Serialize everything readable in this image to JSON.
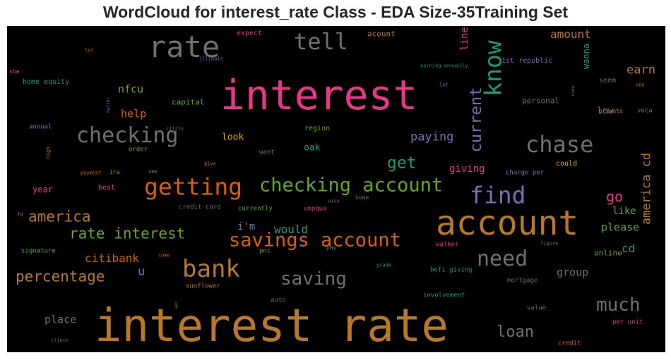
{
  "chart_data": {
    "type": "wordcloud",
    "title": "WordCloud for interest_rate Class - EDA Size-35Training Set",
    "background": "#000000",
    "colormap": "Dark2",
    "words": [
      {
        "text": "interest rate",
        "weight": 1.0,
        "color": "#b8782a"
      },
      {
        "text": "interest",
        "weight": 0.8,
        "color": "#e6378a"
      },
      {
        "text": "account",
        "weight": 0.66,
        "color": "#b8782a"
      },
      {
        "text": "rate",
        "weight": 0.47,
        "color": "#6f6f6f"
      },
      {
        "text": "tell",
        "weight": 0.36,
        "color": "#6f6f6f"
      },
      {
        "text": "know",
        "weight": 0.42,
        "color": "#1e9a78"
      },
      {
        "text": "checking",
        "weight": 0.34,
        "color": "#6f6f6f"
      },
      {
        "text": "current",
        "weight": 0.32,
        "color": "#7470b5"
      },
      {
        "text": "chase",
        "weight": 0.37,
        "color": "#6f6f6f"
      },
      {
        "text": "checking account",
        "weight": 0.33,
        "color": "#66a61e"
      },
      {
        "text": "getting",
        "weight": 0.41,
        "color": "#d95f02"
      },
      {
        "text": "find",
        "weight": 0.37,
        "color": "#7470b5"
      },
      {
        "text": "bank",
        "weight": 0.42,
        "color": "#b8782a"
      },
      {
        "text": "savings account",
        "weight": 0.34,
        "color": "#d95f02"
      },
      {
        "text": "need",
        "weight": 0.37,
        "color": "#6f6f6f"
      },
      {
        "text": "much",
        "weight": 0.33,
        "color": "#6f6f6f"
      },
      {
        "text": "saving",
        "weight": 0.31,
        "color": "#6f6f6f"
      },
      {
        "text": "america",
        "weight": 0.26,
        "color": "#b8782a"
      },
      {
        "text": "rate interest",
        "weight": 0.26,
        "color": "#66a61e"
      },
      {
        "text": "percentage",
        "weight": 0.26,
        "color": "#b8782a"
      },
      {
        "text": "get",
        "weight": 0.28,
        "color": "#1e9a78"
      },
      {
        "text": "paying",
        "weight": 0.22,
        "color": "#7470b5"
      },
      {
        "text": "loan",
        "weight": 0.25,
        "color": "#6f6f6f"
      },
      {
        "text": "america cd",
        "weight": 0.21,
        "color": "#b8782a"
      },
      {
        "text": "go",
        "weight": 0.23,
        "color": "#e6378a"
      },
      {
        "text": "earn",
        "weight": 0.2,
        "color": "#b8782a"
      },
      {
        "text": "amount",
        "weight": 0.19,
        "color": "#b8782a"
      },
      {
        "text": "citibank",
        "weight": 0.19,
        "color": "#d95f02"
      },
      {
        "text": "would",
        "weight": 0.2,
        "color": "#1e9a78"
      },
      {
        "text": "please",
        "weight": 0.18,
        "color": "#66a61e"
      },
      {
        "text": "cd",
        "weight": 0.18,
        "color": "#1e9a78"
      },
      {
        "text": "line",
        "weight": 0.16,
        "color": "#e6378a"
      },
      {
        "text": "group",
        "weight": 0.17,
        "color": "#6f6f6f"
      },
      {
        "text": "help",
        "weight": 0.17,
        "color": "#d95f02"
      },
      {
        "text": "nfcu",
        "weight": 0.16,
        "color": "#66a61e"
      },
      {
        "text": "wanna",
        "weight": 0.12,
        "color": "#1e9a78"
      },
      {
        "text": "place",
        "weight": 0.16,
        "color": "#6f6f6f"
      },
      {
        "text": "u",
        "weight": 0.17,
        "color": "#7470b5"
      },
      {
        "text": "i'm",
        "weight": 0.15,
        "color": "#7470b5"
      },
      {
        "text": "giving",
        "weight": 0.15,
        "color": "#e6378a"
      },
      {
        "text": "like",
        "weight": 0.15,
        "color": "#66a61e"
      },
      {
        "text": "oak",
        "weight": 0.13,
        "color": "#1e9a78"
      },
      {
        "text": "look",
        "weight": 0.13,
        "color": "#e6ab02"
      },
      {
        "text": "year",
        "weight": 0.12,
        "color": "#e6378a"
      },
      {
        "text": "low",
        "weight": 0.13,
        "color": "#6f6f6f"
      },
      {
        "text": "capital",
        "weight": 0.11,
        "color": "#66a61e"
      },
      {
        "text": "personal",
        "weight": 0.11,
        "color": "#6f6f6f"
      },
      {
        "text": "online",
        "weight": 0.11,
        "color": "#66a61e"
      },
      {
        "text": "acount",
        "weight": 0.11,
        "color": "#b8782a"
      },
      {
        "text": "expect",
        "weight": 0.1,
        "color": "#e6378a"
      },
      {
        "text": "1st republic",
        "weight": 0.1,
        "color": "#7470b5"
      },
      {
        "text": "home equity",
        "weight": 0.1,
        "color": "#1e9a78"
      },
      {
        "text": "best",
        "weight": 0.1,
        "color": "#e6378a"
      },
      {
        "text": "could",
        "weight": 0.1,
        "color": "#e6ab02"
      },
      {
        "text": "region",
        "weight": 0.1,
        "color": "#66a61e"
      },
      {
        "text": "seem",
        "weight": 0.1,
        "color": "#6f6f6f"
      },
      {
        "text": "want",
        "weight": 0.09,
        "color": "#6f6f6f"
      },
      {
        "text": "order",
        "weight": 0.09,
        "color": "#66a61e"
      },
      {
        "text": "annual",
        "weight": 0.09,
        "color": "#7470b5"
      },
      {
        "text": "voca",
        "weight": 0.09,
        "color": "#6f6f6f"
      },
      {
        "text": "private",
        "weight": 0.08,
        "color": "#b8782a"
      },
      {
        "text": "one",
        "weight": 0.07,
        "color": "#d95f02"
      },
      {
        "text": "charge per",
        "weight": 0.09,
        "color": "#7470b5"
      },
      {
        "text": "currently",
        "weight": 0.09,
        "color": "#66a61e"
      },
      {
        "text": "umpqua",
        "weight": 0.09,
        "color": "#e6378a"
      },
      {
        "text": "credit card",
        "weight": 0.09,
        "color": "#6f6f6f"
      },
      {
        "text": "signature",
        "weight": 0.09,
        "color": "#66a61e"
      },
      {
        "text": "pnc",
        "weight": 0.09,
        "color": "#66a61e"
      },
      {
        "text": "walker",
        "weight": 0.09,
        "color": "#e6378a"
      },
      {
        "text": "bofi giving",
        "weight": 0.09,
        "color": "#1e9a78"
      },
      {
        "text": "mortgage",
        "weight": 0.09,
        "color": "#6f6f6f"
      },
      {
        "text": "sunflower",
        "weight": 0.09,
        "color": "#b8782a"
      },
      {
        "text": "involvement",
        "weight": 0.09,
        "color": "#1e9a78"
      },
      {
        "text": "auto",
        "weight": 0.09,
        "color": "#6f6f6f"
      },
      {
        "text": "value",
        "weight": 0.09,
        "color": "#6f6f6f"
      },
      {
        "text": "per unit",
        "weight": 0.09,
        "color": "#e6378a"
      },
      {
        "text": "credit",
        "weight": 0.09,
        "color": "#d95f02"
      },
      {
        "text": "earning annually",
        "weight": 0.07,
        "color": "#1e9a78"
      },
      {
        "text": "home",
        "weight": 0.08,
        "color": "#6f6f6f"
      },
      {
        "text": "pay",
        "weight": 0.08,
        "color": "#7470b5"
      },
      {
        "text": "sba",
        "weight": 0.08,
        "color": "#d95f02"
      },
      {
        "text": "lot",
        "weight": 0.07,
        "color": "#b8782a"
      },
      {
        "text": "illinois",
        "weight": 0.07,
        "color": "#7470b5"
      },
      {
        "text": "let",
        "weight": 0.07,
        "color": "#7470b5"
      },
      {
        "text": "citrix",
        "weight": 0.07,
        "color": "#6f6f6f"
      },
      {
        "text": "payment",
        "weight": 0.07,
        "color": "#d95f02"
      },
      {
        "text": "ira",
        "weight": 0.08,
        "color": "#66a61e"
      },
      {
        "text": "see",
        "weight": 0.07,
        "color": "#66a61e"
      },
      {
        "text": "give",
        "weight": 0.07,
        "color": "#b8782a"
      },
      {
        "text": "hi",
        "weight": 0.07,
        "color": "#66a61e"
      },
      {
        "text": "wise",
        "weight": 0.07,
        "color": "#6f6f6f"
      },
      {
        "text": "come",
        "weight": 0.07,
        "color": "#d95f02"
      },
      {
        "text": "grade",
        "weight": 0.07,
        "color": "#1e9a78"
      },
      {
        "text": "figure",
        "weight": 0.07,
        "color": "#6f6f6f"
      },
      {
        "text": "client",
        "weight": 0.07,
        "color": "#6f6f6f"
      },
      {
        "text": "high",
        "weight": 0.07,
        "color": "#b8782a"
      },
      {
        "text": "matter",
        "weight": 0.06,
        "color": "#7470b5"
      },
      {
        "text": "view",
        "weight": 0.06,
        "color": "#7470b5"
      },
      {
        "text": "apr",
        "weight": 0.06,
        "color": "#6f6f6f"
      }
    ]
  }
}
